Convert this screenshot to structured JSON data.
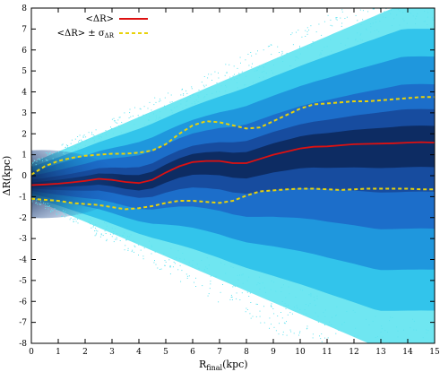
{
  "chart_data": {
    "type": "heatmap",
    "title": "",
    "xlabel": {
      "main": "R",
      "sub": "final",
      "unit": "(kpc)"
    },
    "ylabel": "ΔR(kpc)",
    "xlim": [
      0,
      15
    ],
    "ylim": [
      -8,
      8
    ],
    "x_ticks": [
      0,
      1,
      2,
      3,
      4,
      5,
      6,
      7,
      8,
      9,
      10,
      11,
      12,
      13,
      14,
      15
    ],
    "y_ticks": [
      -8,
      -7,
      -6,
      -5,
      -4,
      -3,
      -2,
      -1,
      0,
      1,
      2,
      3,
      4,
      5,
      6,
      7,
      8
    ],
    "grid": false,
    "legend_position": "top-left",
    "colors": {
      "density_low": "#33ddee",
      "density_mid": "#1f6fd0",
      "density_high": "#000000",
      "mean": "#dd1111",
      "sigma": "#e8d20a"
    },
    "series": [
      {
        "name": "<ΔR>",
        "style": "solid",
        "color": "#dd1111",
        "x": [
          0,
          0.5,
          1,
          1.5,
          2,
          2.5,
          3,
          3.5,
          4,
          4.5,
          5,
          5.5,
          6,
          6.5,
          7,
          7.5,
          8,
          8.5,
          9,
          9.5,
          10,
          10.5,
          11,
          11.5,
          12,
          12.5,
          13,
          13.5,
          14,
          14.5,
          15
        ],
        "y": [
          -0.45,
          -0.42,
          -0.38,
          -0.32,
          -0.25,
          -0.15,
          -0.2,
          -0.3,
          -0.35,
          -0.2,
          0.15,
          0.45,
          0.65,
          0.7,
          0.7,
          0.6,
          0.6,
          0.8,
          1.0,
          1.15,
          1.3,
          1.38,
          1.4,
          1.45,
          1.5,
          1.52,
          1.53,
          1.55,
          1.58,
          1.6,
          1.58
        ]
      },
      {
        "name": "<ΔR> ± σΔR",
        "label_main": "<ΔR> ± σ",
        "label_sub": "ΔR",
        "style": "dashed",
        "color": "#e8d20a",
        "x": [
          0,
          0.5,
          1,
          1.5,
          2,
          2.5,
          3,
          3.5,
          4,
          4.5,
          5,
          5.5,
          6,
          6.5,
          7,
          7.5,
          8,
          8.5,
          9,
          9.5,
          10,
          10.5,
          11,
          11.5,
          12,
          12.5,
          13,
          13.5,
          14,
          14.5,
          15
        ],
        "y": [
          0.05,
          0.45,
          0.7,
          0.85,
          0.95,
          1.0,
          1.05,
          1.05,
          1.1,
          1.2,
          1.5,
          2.0,
          2.4,
          2.6,
          2.55,
          2.4,
          2.25,
          2.3,
          2.6,
          2.9,
          3.2,
          3.4,
          3.45,
          3.5,
          3.55,
          3.55,
          3.6,
          3.65,
          3.7,
          3.75,
          3.75
        ]
      },
      {
        "name": "<ΔR> − σΔR",
        "style": "dashed",
        "color": "#e8d20a",
        "x": [
          0,
          0.5,
          1,
          1.5,
          2,
          2.5,
          3,
          3.5,
          4,
          4.5,
          5,
          5.5,
          6,
          6.5,
          7,
          7.5,
          8,
          8.5,
          9,
          9.5,
          10,
          10.5,
          11,
          11.5,
          12,
          12.5,
          13,
          13.5,
          14,
          14.5,
          15
        ],
        "y": [
          -1.1,
          -1.15,
          -1.2,
          -1.3,
          -1.35,
          -1.4,
          -1.5,
          -1.6,
          -1.55,
          -1.45,
          -1.3,
          -1.2,
          -1.2,
          -1.25,
          -1.3,
          -1.2,
          -0.95,
          -0.75,
          -0.7,
          -0.65,
          -0.62,
          -0.62,
          -0.65,
          -0.68,
          -0.65,
          -0.62,
          -0.62,
          -0.62,
          -0.62,
          -0.65,
          -0.65
        ]
      }
    ]
  }
}
